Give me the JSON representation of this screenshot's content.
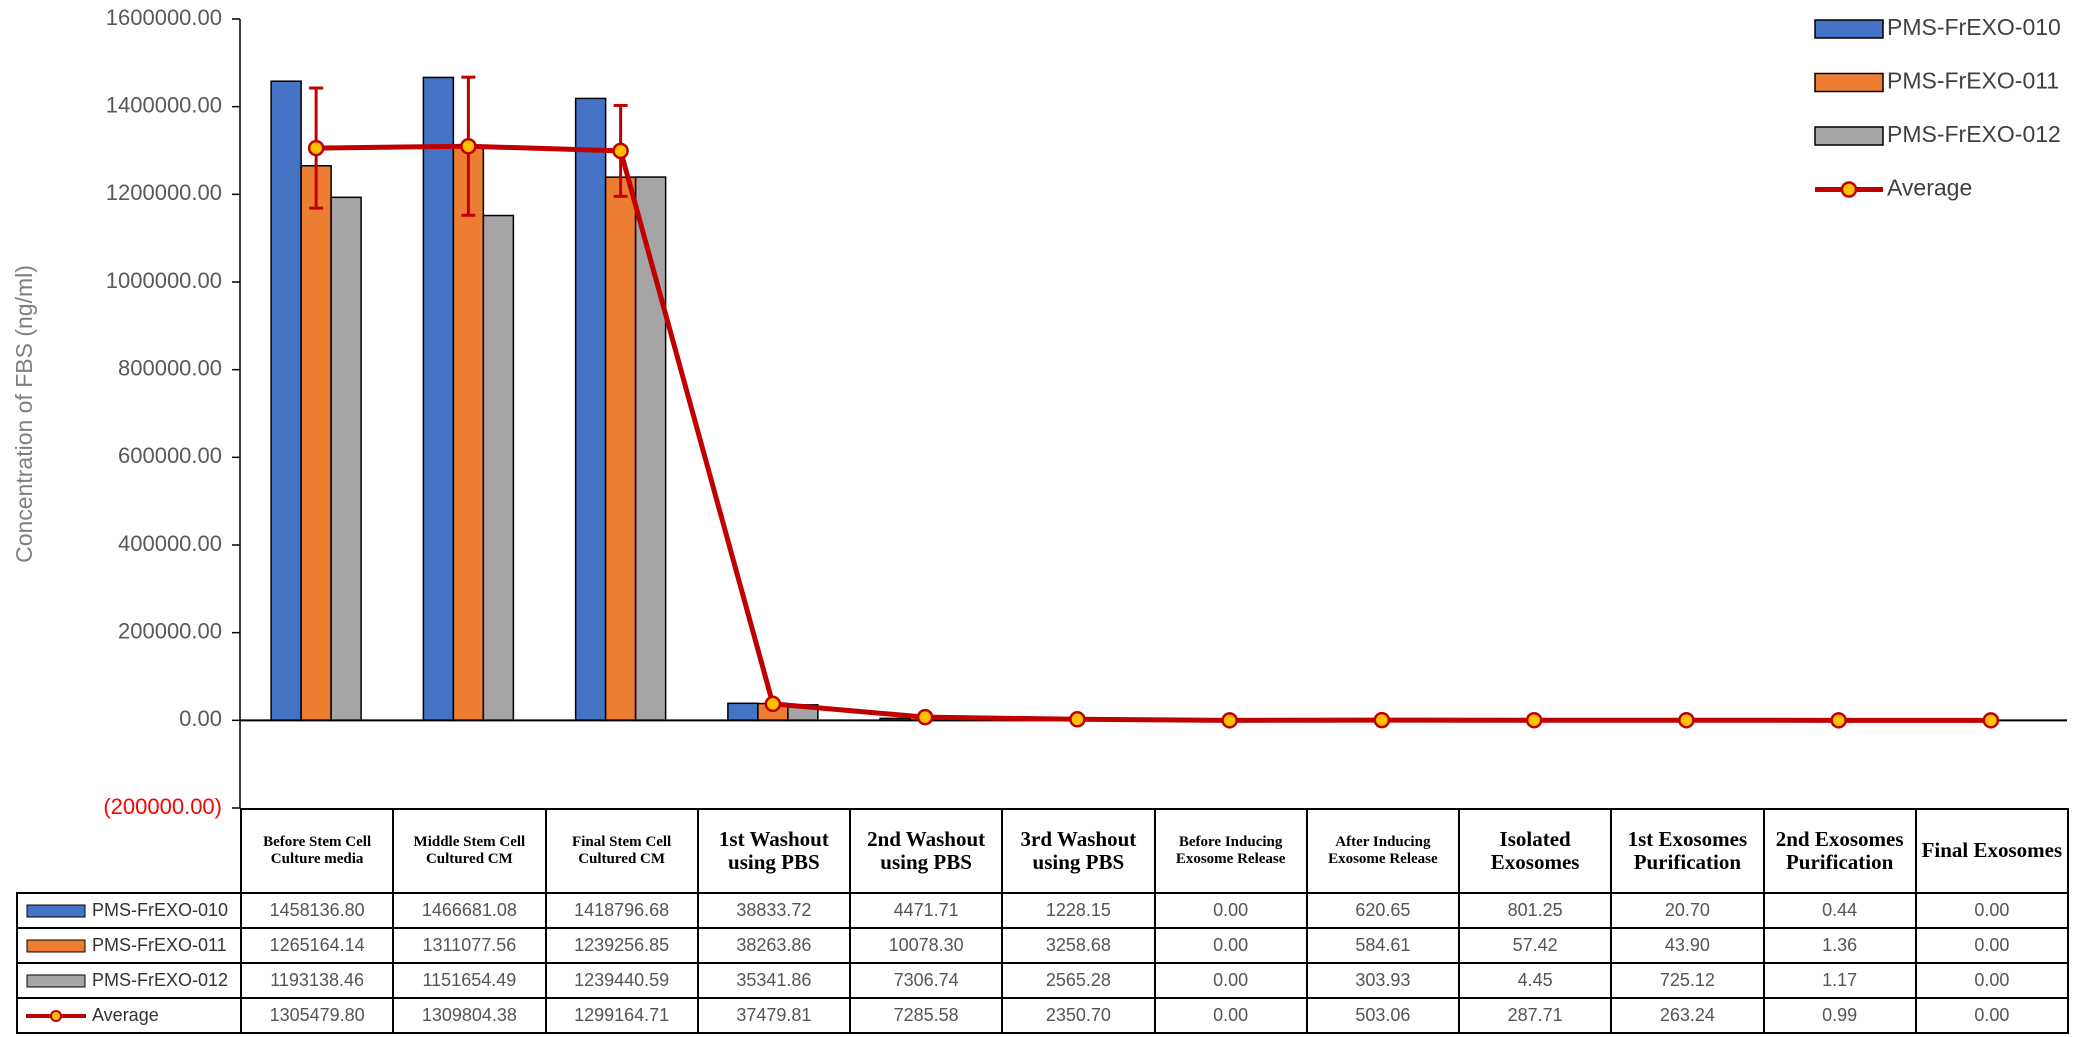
{
  "chart_data": {
    "type": "bar",
    "y_label": "Concentration of FBS (ng/ml)",
    "categories": [
      "Before Stem Cell Culture media",
      "Middle Stem Cell Cultured CM",
      "Final Stem Cell Cultured CM",
      "1st Washout using PBS",
      "2nd Washout using PBS",
      "3rd Washout using PBS",
      "Before Inducing Exosome Release",
      "After Inducing Exosome Release",
      "Isolated Exosomes",
      "1st Exosomes Purification",
      "2nd Exosomes Purification",
      "Final Exosomes"
    ],
    "series": [
      {
        "name": "PMS-FrEXO-010",
        "color": "#4472c4",
        "type": "bar",
        "values": [
          1458136.8,
          1466681.08,
          1418796.68,
          38833.72,
          4471.71,
          1228.15,
          0,
          620.65,
          801.25,
          20.7,
          0.44,
          0
        ],
        "value_labels": [
          "1458136.80",
          "1466681.08",
          "1418796.68",
          "38833.72",
          "4471.71",
          "1228.15",
          "0.00",
          "620.65",
          "801.25",
          "20.70",
          "0.44",
          "0.00"
        ]
      },
      {
        "name": "PMS-FrEXO-011",
        "color": "#ed7d31",
        "type": "bar",
        "values": [
          1265164.14,
          1311077.56,
          1239256.85,
          38263.86,
          10078.3,
          3258.68,
          0,
          584.61,
          57.42,
          43.9,
          1.36,
          0
        ],
        "value_labels": [
          "1265164.14",
          "1311077.56",
          "1239256.85",
          "38263.86",
          "10078.30",
          "3258.68",
          "0.00",
          "584.61",
          "57.42",
          "43.90",
          "1.36",
          "0.00"
        ]
      },
      {
        "name": "PMS-FrEXO-012",
        "color": "#a5a5a5",
        "type": "bar",
        "values": [
          1193138.46,
          1151654.49,
          1239440.59,
          35341.86,
          7306.74,
          2565.28,
          0,
          303.93,
          4.45,
          725.12,
          1.17,
          0
        ],
        "value_labels": [
          "1193138.46",
          "1151654.49",
          "1239440.59",
          "35341.86",
          "7306.74",
          "2565.28",
          "0.00",
          "303.93",
          "4.45",
          "725.12",
          "1.17",
          "0.00"
        ]
      },
      {
        "name": "Average",
        "color": "#c00000",
        "marker_color": "#ffc000",
        "type": "line",
        "values": [
          1305479.8,
          1309804.38,
          1299164.71,
          37479.81,
          7285.58,
          2350.7,
          0,
          503.06,
          287.71,
          263.24,
          0.99,
          0
        ],
        "value_labels": [
          "1305479.80",
          "1309804.38",
          "1299164.71",
          "37479.81",
          "7285.58",
          "2350.70",
          "0.00",
          "503.06",
          "287.71",
          "263.24",
          "0.99",
          "0.00"
        ],
        "errors": [
          137025,
          157515,
          103605,
          1873,
          2803,
          1032,
          0,
          173,
          446,
          400,
          0.49,
          0
        ]
      }
    ],
    "ylim": [
      -200000,
      1600000
    ],
    "yticks": [
      {
        "value": -200000,
        "label": "(200000.00)"
      },
      {
        "value": 0,
        "label": "0.00"
      },
      {
        "value": 200000,
        "label": "200000.00"
      },
      {
        "value": 400000,
        "label": "400000.00"
      },
      {
        "value": 600000,
        "label": "600000.00"
      },
      {
        "value": 800000,
        "label": "800000.00"
      },
      {
        "value": 1000000,
        "label": "1000000.00"
      },
      {
        "value": 1200000,
        "label": "1200000.00"
      },
      {
        "value": 1400000,
        "label": "1400000.00"
      },
      {
        "value": 1600000,
        "label": "1600000.00"
      }
    ],
    "grid": false,
    "legend": "top-right"
  }
}
